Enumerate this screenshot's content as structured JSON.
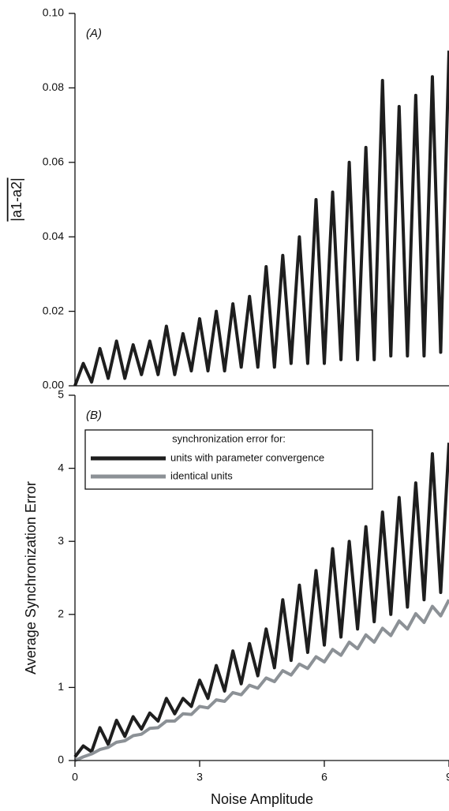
{
  "chart_data": [
    {
      "type": "line",
      "annotation": "(A)",
      "y_label": "|a1-a2|",
      "x": [
        0,
        0.2,
        0.4,
        0.6,
        0.8,
        1.0,
        1.2,
        1.4,
        1.6,
        1.8,
        2.0,
        2.2,
        2.4,
        2.6,
        2.8,
        3.0,
        3.2,
        3.4,
        3.6,
        3.8,
        4.0,
        4.2,
        4.4,
        4.6,
        4.8,
        5.0,
        5.2,
        5.4,
        5.6,
        5.8,
        6.0,
        6.2,
        6.4,
        6.6,
        6.8,
        7.0,
        7.2,
        7.4,
        7.6,
        7.8,
        8.0,
        8.2,
        8.4,
        8.6,
        8.8,
        9.0
      ],
      "series": [
        {
          "color": "#1e1e1e",
          "values": [
            0.0,
            0.006,
            0.001,
            0.01,
            0.002,
            0.012,
            0.002,
            0.011,
            0.003,
            0.012,
            0.003,
            0.016,
            0.003,
            0.014,
            0.004,
            0.018,
            0.004,
            0.02,
            0.004,
            0.022,
            0.005,
            0.024,
            0.005,
            0.032,
            0.005,
            0.035,
            0.006,
            0.04,
            0.006,
            0.05,
            0.006,
            0.052,
            0.007,
            0.06,
            0.007,
            0.064,
            0.007,
            0.082,
            0.008,
            0.075,
            0.008,
            0.078,
            0.008,
            0.083,
            0.009,
            0.09
          ]
        }
      ],
      "xlim": [
        0,
        9
      ],
      "ylim": [
        0,
        0.1
      ],
      "yticks": [
        {
          "value": 0,
          "label": "0.00"
        },
        0.02,
        0.04,
        0.06,
        0.08,
        {
          "value": 0.1,
          "label": "0.10"
        }
      ]
    },
    {
      "type": "line",
      "annotation": "(B)",
      "x_label": "Noise Amplitude",
      "y_label": "Average Synchronization Error",
      "x": [
        0,
        0.2,
        0.4,
        0.6,
        0.8,
        1.0,
        1.2,
        1.4,
        1.6,
        1.8,
        2.0,
        2.2,
        2.4,
        2.6,
        2.8,
        3.0,
        3.2,
        3.4,
        3.6,
        3.8,
        4.0,
        4.2,
        4.4,
        4.6,
        4.8,
        5.0,
        5.2,
        5.4,
        5.6,
        5.8,
        6.0,
        6.2,
        6.4,
        6.6,
        6.8,
        7.0,
        7.2,
        7.4,
        7.6,
        7.8,
        8.0,
        8.2,
        8.4,
        8.6,
        8.8,
        9.0
      ],
      "legend_title": "synchronization error for:",
      "legend": "upper left",
      "series": [
        {
          "name": "units with parameter convergence",
          "color": "#1e1e1e",
          "values": [
            0.05,
            0.2,
            0.12,
            0.45,
            0.22,
            0.55,
            0.33,
            0.6,
            0.43,
            0.65,
            0.54,
            0.85,
            0.64,
            0.85,
            0.74,
            1.1,
            0.85,
            1.3,
            0.95,
            1.5,
            1.05,
            1.6,
            1.16,
            1.8,
            1.27,
            2.2,
            1.37,
            2.4,
            1.48,
            2.6,
            1.58,
            2.9,
            1.69,
            3.0,
            1.8,
            3.2,
            1.9,
            3.4,
            2.0,
            3.6,
            2.1,
            3.8,
            2.2,
            4.2,
            2.3,
            4.35
          ]
        },
        {
          "name": "identical units",
          "color": "#8c9196",
          "values": [
            0.0,
            0.05,
            0.09,
            0.15,
            0.18,
            0.25,
            0.27,
            0.34,
            0.36,
            0.44,
            0.45,
            0.54,
            0.54,
            0.64,
            0.63,
            0.74,
            0.72,
            0.83,
            0.81,
            0.93,
            0.9,
            1.03,
            0.99,
            1.13,
            1.08,
            1.23,
            1.17,
            1.32,
            1.26,
            1.42,
            1.35,
            1.52,
            1.44,
            1.62,
            1.53,
            1.72,
            1.62,
            1.81,
            1.71,
            1.91,
            1.8,
            2.01,
            1.89,
            2.11,
            1.98,
            2.2
          ]
        }
      ],
      "xlim": [
        0,
        9
      ],
      "ylim": [
        0,
        5
      ],
      "xticks": [
        0,
        3,
        6,
        9
      ],
      "yticks": [
        0,
        1,
        2,
        3,
        4,
        5
      ]
    }
  ]
}
